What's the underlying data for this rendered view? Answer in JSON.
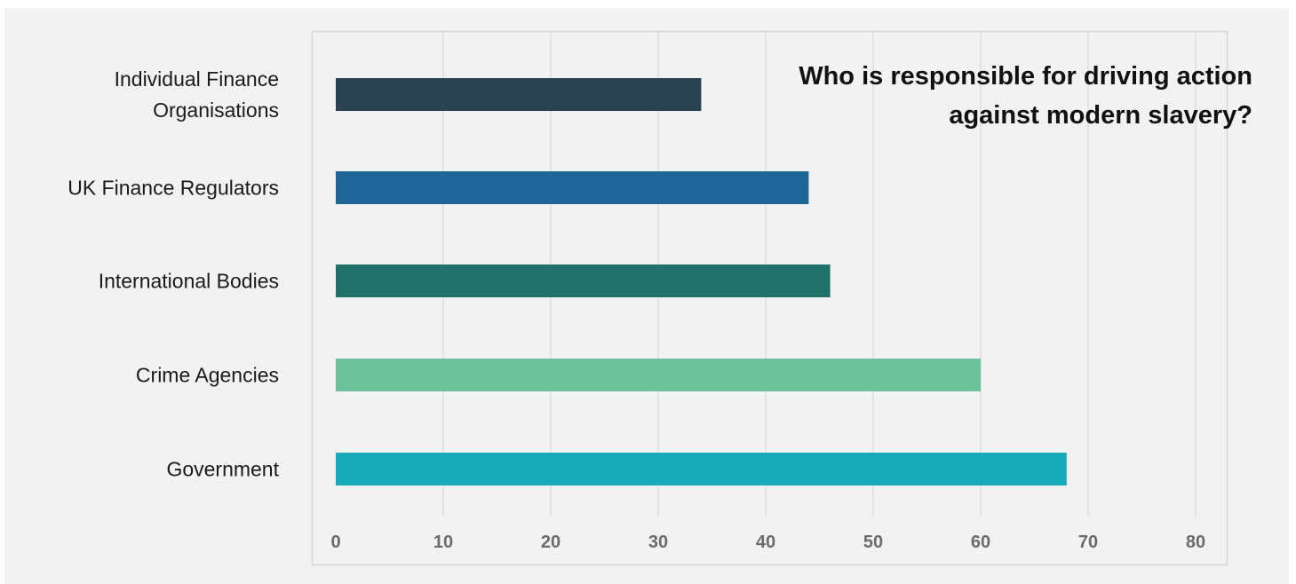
{
  "chart_data": {
    "type": "bar",
    "orientation": "horizontal",
    "title": "Who is responsible for driving action against modern slavery?",
    "title_lines": [
      "Who is responsible for driving action",
      "against modern slavery?"
    ],
    "categories": [
      "Individual Finance Organisations",
      "UK Finance Regulators",
      "International Bodies",
      "Crime Agencies",
      "Government"
    ],
    "category_lines": [
      [
        "Individual Finance",
        "Organisations"
      ],
      [
        "UK Finance Regulators"
      ],
      [
        "International Bodies"
      ],
      [
        "Crime Agencies"
      ],
      [
        "Government"
      ]
    ],
    "values": [
      34,
      44,
      46,
      60,
      68
    ],
    "colors": [
      "#2b4252",
      "#1e6598",
      "#207169",
      "#6bc29a",
      "#17aab8"
    ],
    "xlim": [
      0,
      80
    ],
    "xticks": [
      0,
      10,
      20,
      30,
      40,
      50,
      60,
      70,
      80
    ],
    "xlabel": "",
    "ylabel": "",
    "grid": "vertical",
    "legend": "none"
  }
}
